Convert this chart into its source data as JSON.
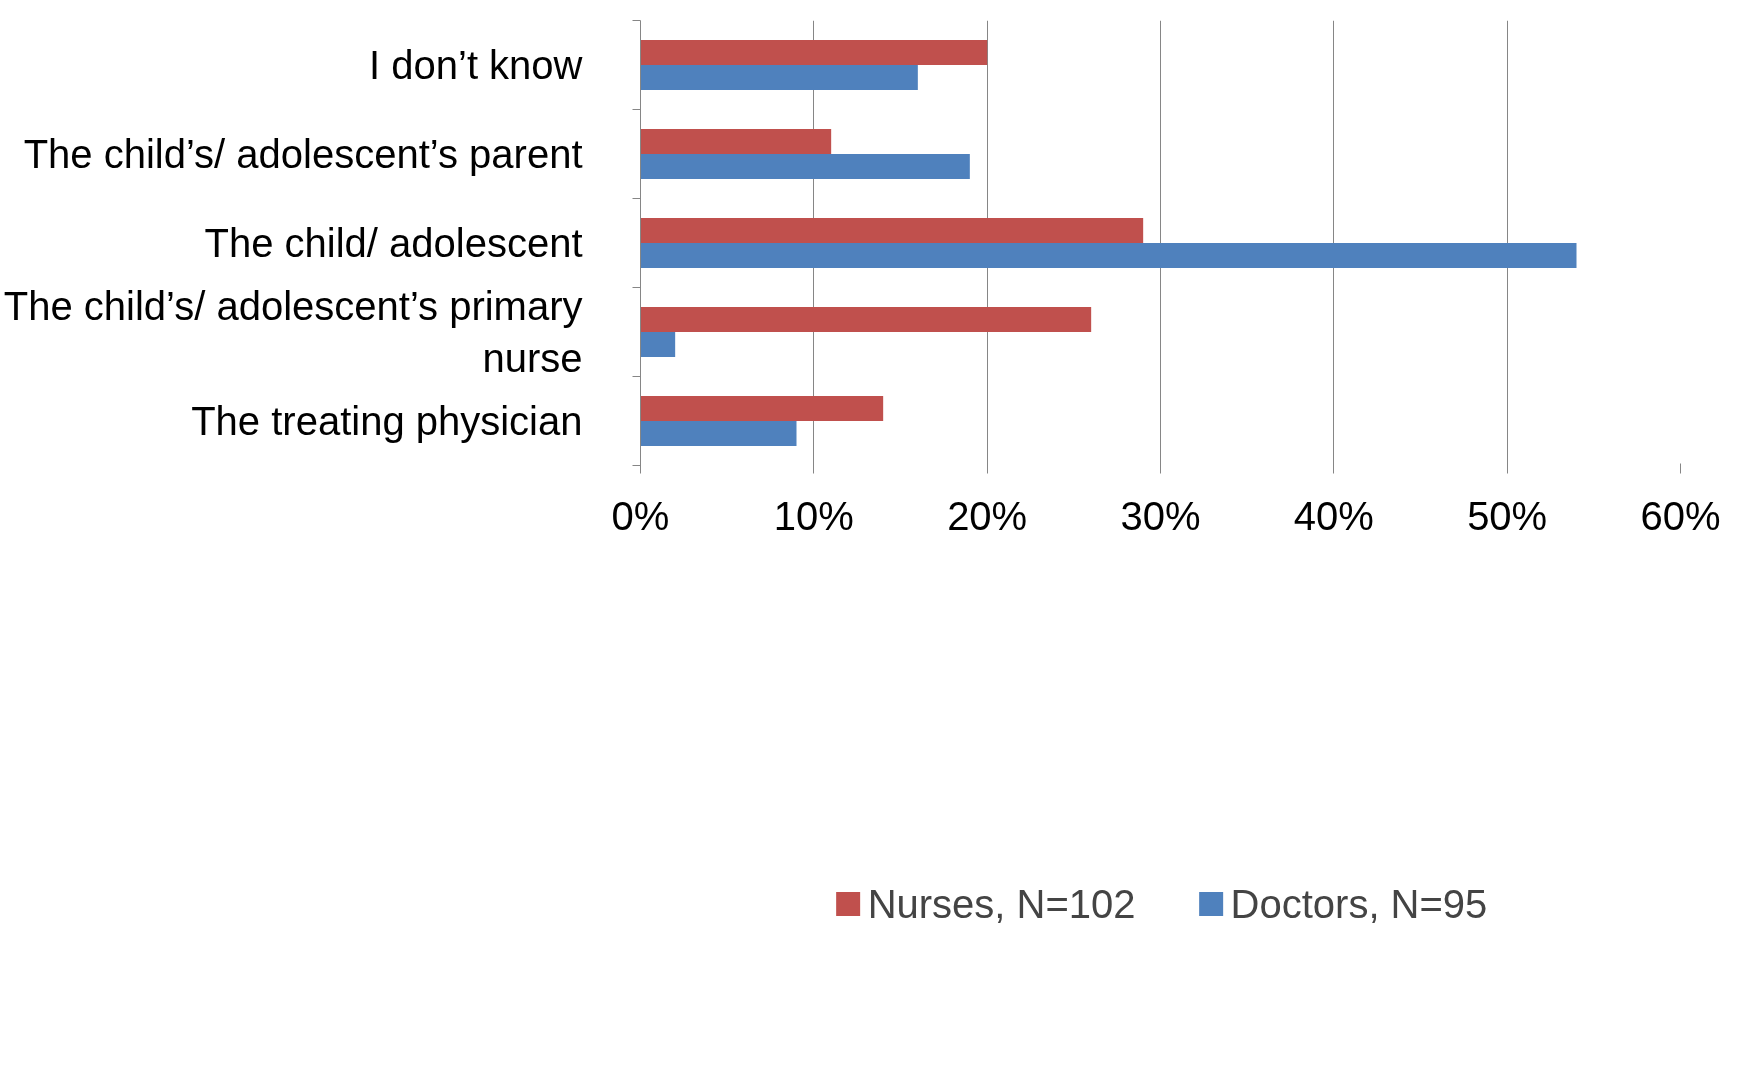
{
  "chart_data": {
    "type": "bar",
    "orientation": "horizontal",
    "categories": [
      "I don’t know",
      "The child’s/ adolescent’s parent",
      "The child/ adolescent",
      "The child’s/ adolescent’s primary nurse",
      "The treating physician"
    ],
    "series": [
      {
        "name": "Nurses, N=102",
        "color": "#c0504d",
        "values": [
          20,
          11,
          29,
          26,
          14
        ]
      },
      {
        "name": "Doctors, N=95",
        "color": "#4f81bd",
        "values": [
          16,
          19,
          54,
          2,
          9
        ]
      }
    ],
    "xlim": [
      0,
      60
    ],
    "xticks": [
      {
        "value": 0,
        "label": "0%"
      },
      {
        "value": 10,
        "label": "10%"
      },
      {
        "value": 20,
        "label": "20%"
      },
      {
        "value": 30,
        "label": "30%"
      },
      {
        "value": 40,
        "label": "40%"
      },
      {
        "value": 50,
        "label": "50%"
      },
      {
        "value": 60,
        "label": "60%"
      }
    ],
    "grid": "x",
    "legend": "bottom"
  }
}
